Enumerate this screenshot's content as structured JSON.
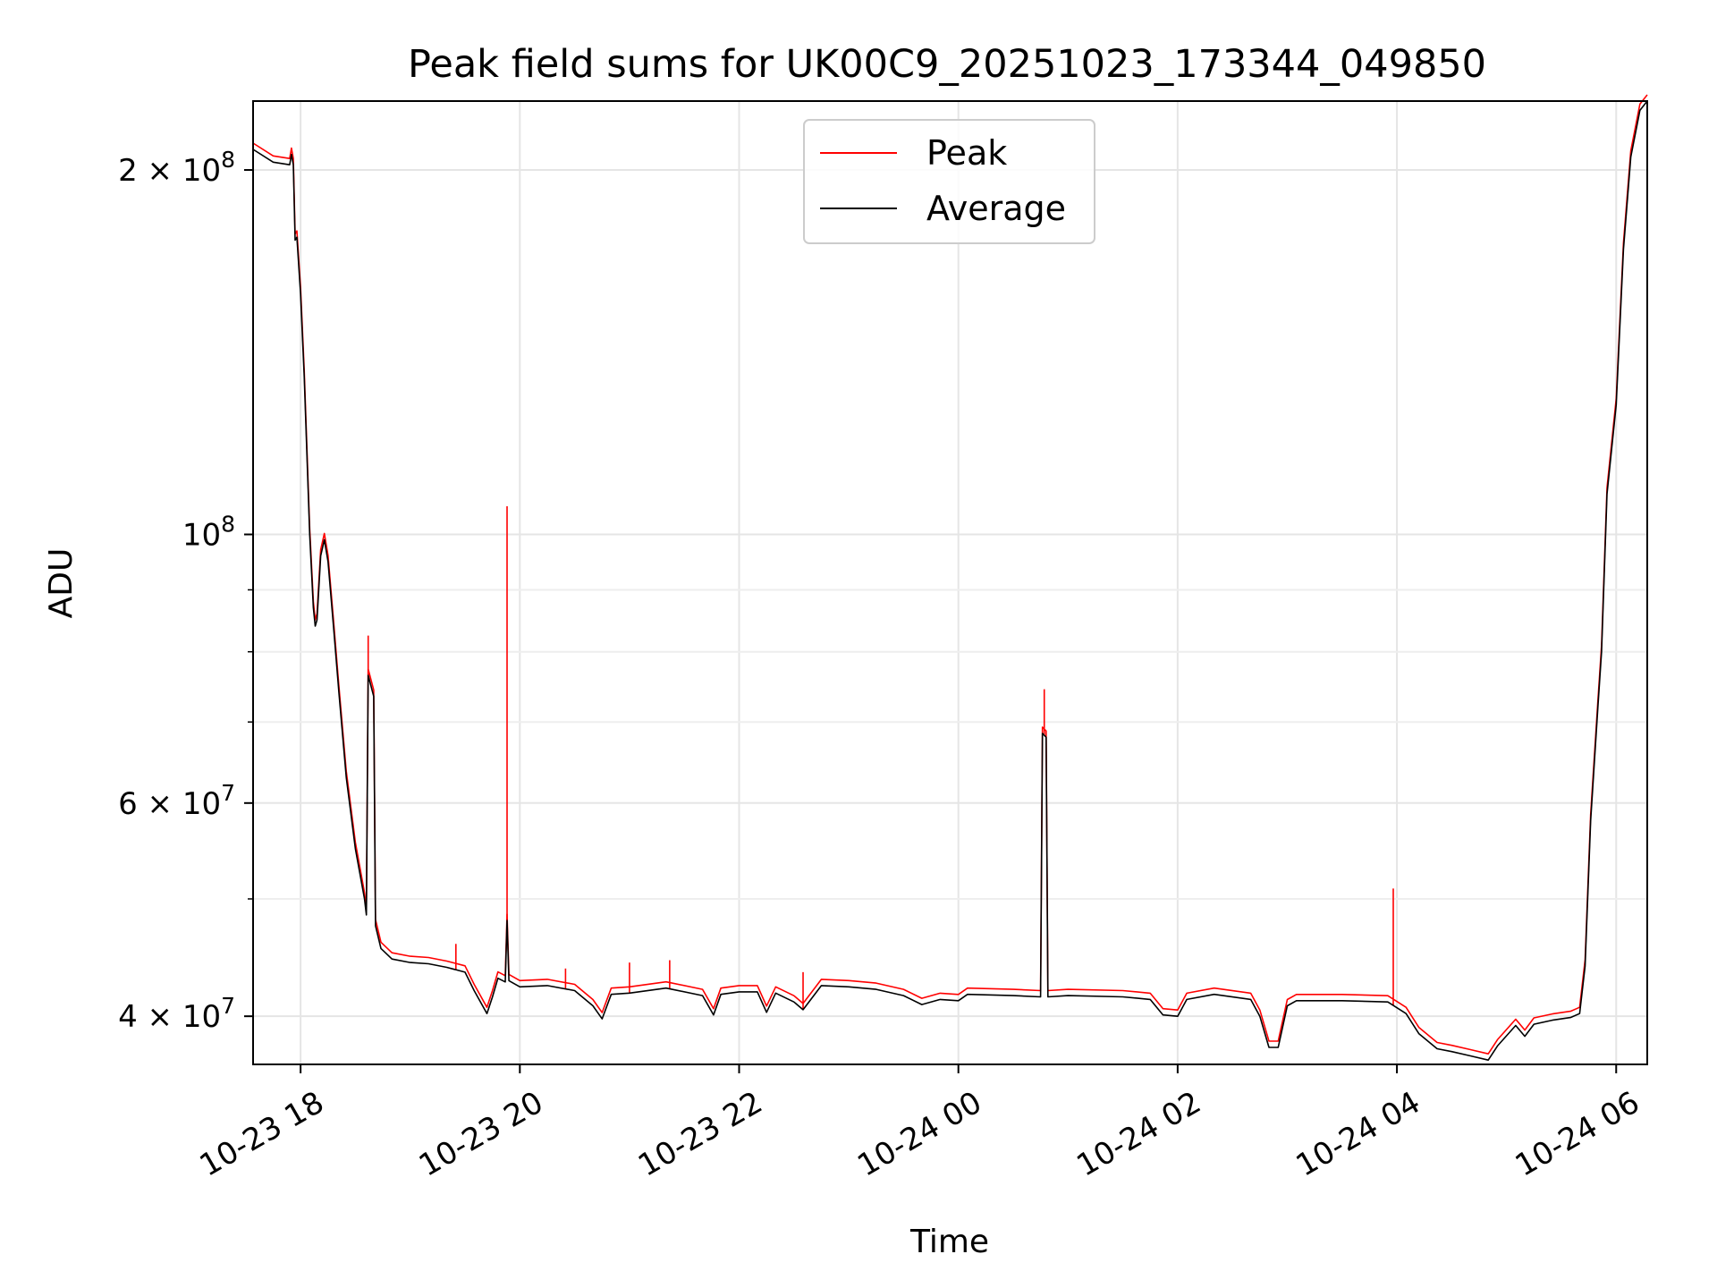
{
  "chart_data": {
    "type": "line",
    "title": "Peak field sums for UK00C9_20251023_173344_049850",
    "xlabel": "Time",
    "ylabel": "ADU",
    "xlim": [
      "2025-10-23 17:34",
      "2025-10-24 06:17"
    ],
    "ylim": [
      36500000,
      228000000
    ],
    "yscale": "log",
    "grid": true,
    "legend_position": "top-center",
    "x_ticks": [
      {
        "value": "2025-10-23 18:00",
        "label": "10-23 18"
      },
      {
        "value": "2025-10-23 20:00",
        "label": "10-23 20"
      },
      {
        "value": "2025-10-23 22:00",
        "label": "10-23 22"
      },
      {
        "value": "2025-10-24 00:00",
        "label": "10-24 00"
      },
      {
        "value": "2025-10-24 02:00",
        "label": "10-24 02"
      },
      {
        "value": "2025-10-24 04:00",
        "label": "10-24 04"
      },
      {
        "value": "2025-10-24 06:00",
        "label": "10-24 06"
      }
    ],
    "y_major_ticks": [
      {
        "value": 40000000,
        "mantissa": "4",
        "exponent": "7"
      },
      {
        "value": 60000000,
        "mantissa": "6",
        "exponent": "7"
      },
      {
        "value": 100000000,
        "mantissa": "",
        "exponent": "8"
      },
      {
        "value": 200000000,
        "mantissa": "2",
        "exponent": "8"
      }
    ],
    "y_minor_ticks": [
      50000000,
      70000000,
      80000000,
      90000000
    ],
    "series": [
      {
        "name": "Average",
        "color": "#000000",
        "points": [
          [
            "2025-10-23 17:34",
            208000000
          ],
          [
            "2025-10-23 17:45",
            203000000
          ],
          [
            "2025-10-23 17:54",
            202000000
          ],
          [
            "2025-10-23 17:55",
            206000000
          ],
          [
            "2025-10-23 17:56",
            202000000
          ],
          [
            "2025-10-23 17:57",
            175000000
          ],
          [
            "2025-10-23 17:58",
            176000000
          ],
          [
            "2025-10-23 18:00",
            158000000
          ],
          [
            "2025-10-23 18:02",
            135000000
          ],
          [
            "2025-10-23 18:05",
            100000000
          ],
          [
            "2025-10-23 18:07",
            87000000
          ],
          [
            "2025-10-23 18:08",
            84000000
          ],
          [
            "2025-10-23 18:09",
            85000000
          ],
          [
            "2025-10-23 18:11",
            96000000
          ],
          [
            "2025-10-23 18:13",
            99000000
          ],
          [
            "2025-10-23 18:15",
            95000000
          ],
          [
            "2025-10-23 18:18",
            84000000
          ],
          [
            "2025-10-23 18:21",
            74000000
          ],
          [
            "2025-10-23 18:25",
            63000000
          ],
          [
            "2025-10-23 18:30",
            55000000
          ],
          [
            "2025-10-23 18:35",
            50000000
          ],
          [
            "2025-10-23 18:36",
            48500000
          ],
          [
            "2025-10-23 18:37",
            76500000
          ],
          [
            "2025-10-23 18:40",
            73500000
          ],
          [
            "2025-10-23 18:41",
            47500000
          ],
          [
            "2025-10-23 18:44",
            45500000
          ],
          [
            "2025-10-23 18:50",
            44600000
          ],
          [
            "2025-10-23 19:00",
            44300000
          ],
          [
            "2025-10-23 19:10",
            44200000
          ],
          [
            "2025-10-23 19:20",
            43900000
          ],
          [
            "2025-10-23 19:30",
            43500000
          ],
          [
            "2025-10-23 19:35",
            42000000
          ],
          [
            "2025-10-23 19:42",
            40200000
          ],
          [
            "2025-10-23 19:45",
            41500000
          ],
          [
            "2025-10-23 19:48",
            43000000
          ],
          [
            "2025-10-23 19:52",
            42700000
          ],
          [
            "2025-10-23 19:53",
            48000000
          ],
          [
            "2025-10-23 19:54",
            42800000
          ],
          [
            "2025-10-23 20:00",
            42300000
          ],
          [
            "2025-10-23 20:15",
            42400000
          ],
          [
            "2025-10-23 20:30",
            42000000
          ],
          [
            "2025-10-23 20:40",
            40800000
          ],
          [
            "2025-10-23 20:45",
            39800000
          ],
          [
            "2025-10-23 20:50",
            41700000
          ],
          [
            "2025-10-23 21:00",
            41800000
          ],
          [
            "2025-10-23 21:20",
            42200000
          ],
          [
            "2025-10-23 21:40",
            41600000
          ],
          [
            "2025-10-23 21:46",
            40100000
          ],
          [
            "2025-10-23 21:50",
            41700000
          ],
          [
            "2025-10-23 22:00",
            41900000
          ],
          [
            "2025-10-23 22:10",
            41900000
          ],
          [
            "2025-10-23 22:15",
            40300000
          ],
          [
            "2025-10-23 22:20",
            41800000
          ],
          [
            "2025-10-23 22:30",
            41100000
          ],
          [
            "2025-10-23 22:35",
            40500000
          ],
          [
            "2025-10-23 22:45",
            42400000
          ],
          [
            "2025-10-23 23:00",
            42300000
          ],
          [
            "2025-10-23 23:15",
            42100000
          ],
          [
            "2025-10-23 23:30",
            41600000
          ],
          [
            "2025-10-23 23:40",
            40900000
          ],
          [
            "2025-10-23 23:50",
            41300000
          ],
          [
            "2025-10-24 00:00",
            41200000
          ],
          [
            "2025-10-24 00:05",
            41700000
          ],
          [
            "2025-10-24 00:30",
            41600000
          ],
          [
            "2025-10-24 00:45",
            41500000
          ],
          [
            "2025-10-24 00:46",
            68500000
          ],
          [
            "2025-10-24 00:48",
            68000000
          ],
          [
            "2025-10-24 00:49",
            41500000
          ],
          [
            "2025-10-24 01:00",
            41600000
          ],
          [
            "2025-10-24 01:30",
            41500000
          ],
          [
            "2025-10-24 01:45",
            41300000
          ],
          [
            "2025-10-24 01:52",
            40100000
          ],
          [
            "2025-10-24 02:00",
            40000000
          ],
          [
            "2025-10-24 02:05",
            41300000
          ],
          [
            "2025-10-24 02:20",
            41700000
          ],
          [
            "2025-10-24 02:40",
            41300000
          ],
          [
            "2025-10-24 02:45",
            40000000
          ],
          [
            "2025-10-24 02:50",
            37700000
          ],
          [
            "2025-10-24 02:55",
            37700000
          ],
          [
            "2025-10-24 03:00",
            40800000
          ],
          [
            "2025-10-24 03:05",
            41200000
          ],
          [
            "2025-10-24 03:30",
            41200000
          ],
          [
            "2025-10-24 03:55",
            41100000
          ],
          [
            "2025-10-24 04:05",
            40200000
          ],
          [
            "2025-10-24 04:12",
            38700000
          ],
          [
            "2025-10-24 04:22",
            37600000
          ],
          [
            "2025-10-24 04:30",
            37400000
          ],
          [
            "2025-10-24 04:40",
            37100000
          ],
          [
            "2025-10-24 04:50",
            36800000
          ],
          [
            "2025-10-24 04:55",
            37800000
          ],
          [
            "2025-10-24 05:05",
            39300000
          ],
          [
            "2025-10-24 05:10",
            38500000
          ],
          [
            "2025-10-24 05:15",
            39400000
          ],
          [
            "2025-10-24 05:25",
            39700000
          ],
          [
            "2025-10-24 05:35",
            39900000
          ],
          [
            "2025-10-24 05:40",
            40200000
          ],
          [
            "2025-10-24 05:43",
            44000000
          ],
          [
            "2025-10-24 05:46",
            58000000
          ],
          [
            "2025-10-24 05:50",
            72000000
          ],
          [
            "2025-10-24 05:52",
            80000000
          ],
          [
            "2025-10-24 05:55",
            108000000
          ],
          [
            "2025-10-24 06:00",
            128000000
          ],
          [
            "2025-10-24 06:04",
            172000000
          ],
          [
            "2025-10-24 06:08",
            205000000
          ],
          [
            "2025-10-24 06:13",
            224000000
          ],
          [
            "2025-10-24 06:17",
            228000000
          ]
        ]
      },
      {
        "name": "Peak",
        "color": "#ff0000",
        "spikes": [
          [
            "2025-10-23 18:37",
            82500000
          ],
          [
            "2025-10-23 19:25",
            45900000
          ],
          [
            "2025-10-23 19:53",
            105500000
          ],
          [
            "2025-10-23 20:25",
            43800000
          ],
          [
            "2025-10-23 21:00",
            44300000
          ],
          [
            "2025-10-23 21:22",
            44500000
          ],
          [
            "2025-10-23 22:35",
            43500000
          ],
          [
            "2025-10-24 00:47",
            74500000
          ],
          [
            "2025-10-24 03:58",
            51000000
          ]
        ]
      }
    ]
  }
}
